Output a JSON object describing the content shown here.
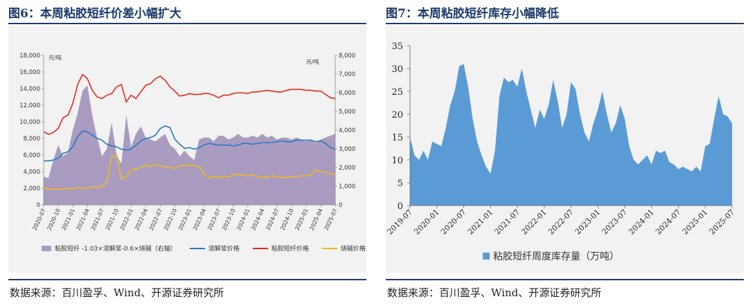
{
  "left": {
    "title": "图6：本周粘胶短纤价差小幅扩大",
    "source": "数据来源：百川盈孚、Wind、开源证券研究所",
    "y_unit_left": "元/吨",
    "y_unit_right": "元/吨",
    "colors": {
      "spread": "#a99cc0",
      "pulp": "#2a78c2",
      "viscose": "#e32a20",
      "caustic": "#f5b81c"
    },
    "legend": [
      {
        "key": "spread",
        "label": "粘胶短纤 -1.03×溶解浆-0.6×烧碱（右轴）"
      },
      {
        "key": "pulp",
        "label": "溶解浆价格"
      },
      {
        "key": "viscose",
        "label": "粘胶短纤价格"
      },
      {
        "key": "caustic",
        "label": "烧碱价格"
      }
    ]
  },
  "right": {
    "title": "图7：本周粘胶短纤库存小幅降低",
    "source": "数据来源：百川盈孚、Wind、开源证券研究所",
    "legend_label": "粘胶短纤周度库存量（万吨）",
    "colors": {
      "inventory": "#5b9bd5"
    }
  },
  "chart_data": [
    {
      "type": "line",
      "xlabel": "",
      "ylabel": "元/吨",
      "x_ticks": [
        "2020-07",
        "2020-10",
        "2021-01",
        "2021-04",
        "2021-07",
        "2021-10",
        "2022-01",
        "2022-04",
        "2022-07",
        "2022-10",
        "2023-01",
        "2023-04",
        "2023-07",
        "2023-10",
        "2024-01",
        "2024-04",
        "2024-07",
        "2024-10",
        "2025-01",
        "2025-04",
        "2025-07"
      ],
      "y_ticks_left": [
        "0",
        "2,000",
        "4,000",
        "6,000",
        "8,000",
        "10,000",
        "12,000",
        "14,000",
        "16,000",
        "18,000"
      ],
      "y_ticks_right": [
        "0",
        "1,000",
        "2,000",
        "3,000",
        "4,000",
        "5,000",
        "6,000",
        "7,000",
        "8,000"
      ],
      "ylim_left": [
        0,
        18000
      ],
      "ylim_right": [
        0,
        8000
      ],
      "x": [
        "2020-07",
        "2020-08",
        "2020-09",
        "2020-10",
        "2020-11",
        "2020-12",
        "2021-01",
        "2021-02",
        "2021-03",
        "2021-04",
        "2021-05",
        "2021-06",
        "2021-07",
        "2021-08",
        "2021-09",
        "2021-10",
        "2021-11",
        "2021-12",
        "2022-01",
        "2022-02",
        "2022-03",
        "2022-04",
        "2022-05",
        "2022-06",
        "2022-07",
        "2022-08",
        "2022-09",
        "2022-10",
        "2022-11",
        "2022-12",
        "2023-01",
        "2023-02",
        "2023-03",
        "2023-04",
        "2023-05",
        "2023-06",
        "2023-07",
        "2023-08",
        "2023-09",
        "2023-10",
        "2023-11",
        "2023-12",
        "2024-01",
        "2024-02",
        "2024-03",
        "2024-04",
        "2024-05",
        "2024-06",
        "2024-07",
        "2024-08",
        "2024-09",
        "2024-10",
        "2024-11",
        "2024-12",
        "2025-01",
        "2025-02",
        "2025-03",
        "2025-04",
        "2025-05",
        "2025-06",
        "2025-07"
      ],
      "series": [
        {
          "name": "粘胶短纤 -1.03×溶解浆-0.6×烧碱（右轴）",
          "axis": "right",
          "kind": "area",
          "values": [
            1500,
            1450,
            2400,
            3200,
            2600,
            2800,
            4000,
            4900,
            6100,
            6400,
            4800,
            3600,
            2600,
            3000,
            4400,
            2700,
            2200,
            4800,
            3100,
            3800,
            4200,
            3600,
            3500,
            3400,
            3600,
            3800,
            3200,
            3000,
            2600,
            2900,
            2600,
            2400,
            3500,
            3600,
            3600,
            3400,
            3700,
            3700,
            3500,
            3600,
            3800,
            3600,
            3600,
            3700,
            3600,
            3800,
            3600,
            3700,
            3500,
            3600,
            3600,
            3500,
            3600,
            3500,
            3400,
            3500,
            3300,
            3500,
            3600,
            3700,
            3800
          ]
        },
        {
          "name": "溶解浆价格",
          "axis": "left",
          "kind": "line",
          "values": [
            5300,
            5300,
            5400,
            5600,
            6200,
            6400,
            7000,
            8200,
            8900,
            8800,
            8400,
            8000,
            7800,
            7300,
            7100,
            7000,
            6700,
            6600,
            6700,
            7200,
            7700,
            8000,
            8100,
            8400,
            9200,
            9500,
            9300,
            7900,
            7300,
            6800,
            6900,
            6700,
            6900,
            7200,
            7400,
            7300,
            7200,
            7200,
            7200,
            7100,
            7200,
            7400,
            7400,
            7300,
            7400,
            7500,
            7500,
            7500,
            7600,
            7700,
            7600,
            7600,
            7800,
            7800,
            7800,
            7800,
            7600,
            7700,
            7400,
            6900,
            6700
          ]
        },
        {
          "name": "粘胶短纤价格",
          "axis": "left",
          "kind": "line",
          "values": [
            8800,
            8500,
            8700,
            9200,
            10500,
            10800,
            12200,
            14500,
            15700,
            15200,
            13800,
            13000,
            12800,
            13200,
            13400,
            14200,
            14500,
            12400,
            13200,
            12800,
            13600,
            14400,
            14600,
            15200,
            15500,
            15000,
            14200,
            13700,
            13100,
            13200,
            13400,
            13300,
            13300,
            13400,
            13400,
            13200,
            12900,
            13200,
            13200,
            13400,
            13500,
            13500,
            13400,
            13600,
            13600,
            13700,
            13800,
            13700,
            13600,
            13600,
            13800,
            13900,
            13900,
            13900,
            13800,
            13800,
            13700,
            13700,
            13300,
            12900,
            12800
          ]
        },
        {
          "name": "烧碱价格",
          "axis": "left",
          "kind": "line",
          "values": [
            2000,
            1900,
            1900,
            1900,
            1900,
            2000,
            1900,
            2100,
            2000,
            2000,
            2200,
            2100,
            2200,
            2800,
            5800,
            6000,
            3100,
            3400,
            4200,
            4300,
            4500,
            4800,
            4600,
            4900,
            4700,
            4600,
            4500,
            4400,
            4700,
            4700,
            4800,
            4700,
            4600,
            3800,
            3200,
            3400,
            3300,
            3400,
            3400,
            3600,
            3700,
            3600,
            3500,
            3600,
            3400,
            3300,
            3300,
            3500,
            3400,
            3300,
            3300,
            3400,
            3400,
            3500,
            3500,
            3600,
            4200,
            4000,
            3900,
            3800,
            3600
          ]
        }
      ]
    },
    {
      "type": "area",
      "xlabel": "",
      "ylabel": "",
      "x_ticks": [
        "2019-07",
        "2020-01",
        "2020-07",
        "2021-01",
        "2021-07",
        "2022-01",
        "2022-07",
        "2023-01",
        "2023-07",
        "2024-01",
        "2024-07",
        "2025-01",
        "2025-07"
      ],
      "y_ticks": [
        "0",
        "5",
        "10",
        "15",
        "20",
        "25",
        "30",
        "35"
      ],
      "ylim": [
        0,
        35
      ],
      "x": [
        "2019-07",
        "2019-08",
        "2019-09",
        "2019-10",
        "2019-11",
        "2019-12",
        "2020-01",
        "2020-02",
        "2020-03",
        "2020-04",
        "2020-05",
        "2020-06",
        "2020-07",
        "2020-08",
        "2020-09",
        "2020-10",
        "2020-11",
        "2020-12",
        "2021-01",
        "2021-02",
        "2021-03",
        "2021-04",
        "2021-05",
        "2021-06",
        "2021-07",
        "2021-08",
        "2021-09",
        "2021-10",
        "2021-11",
        "2021-12",
        "2022-01",
        "2022-02",
        "2022-03",
        "2022-04",
        "2022-05",
        "2022-06",
        "2022-07",
        "2022-08",
        "2022-09",
        "2022-10",
        "2022-11",
        "2022-12",
        "2023-01",
        "2023-02",
        "2023-03",
        "2023-04",
        "2023-05",
        "2023-06",
        "2023-07",
        "2023-08",
        "2023-09",
        "2023-10",
        "2023-11",
        "2023-12",
        "2024-01",
        "2024-02",
        "2024-03",
        "2024-04",
        "2024-05",
        "2024-06",
        "2024-07",
        "2024-08",
        "2024-09",
        "2024-10",
        "2024-11",
        "2024-12",
        "2025-01",
        "2025-02",
        "2025-03",
        "2025-04",
        "2025-05",
        "2025-06",
        "2025-07"
      ],
      "series": [
        {
          "name": "粘胶短纤周度库存量（万吨）",
          "values": [
            15,
            11,
            10,
            12,
            10,
            14,
            13.5,
            13,
            17,
            22,
            25,
            30.5,
            31,
            26,
            19,
            14,
            11,
            8.5,
            7,
            12,
            24,
            28,
            27,
            27.5,
            26,
            30,
            25,
            21,
            17,
            21,
            19,
            22,
            27.5,
            23,
            17,
            20,
            27,
            25.5,
            20,
            16,
            14,
            18,
            21,
            25,
            20,
            16,
            18,
            22,
            19,
            13,
            10,
            9,
            10,
            11,
            9,
            12,
            11.5,
            12,
            9.5,
            9,
            8,
            8.5,
            8,
            7.5,
            8.5,
            7.5,
            13,
            13.5,
            19,
            24,
            20,
            19.5,
            18
          ]
        }
      ]
    }
  ]
}
